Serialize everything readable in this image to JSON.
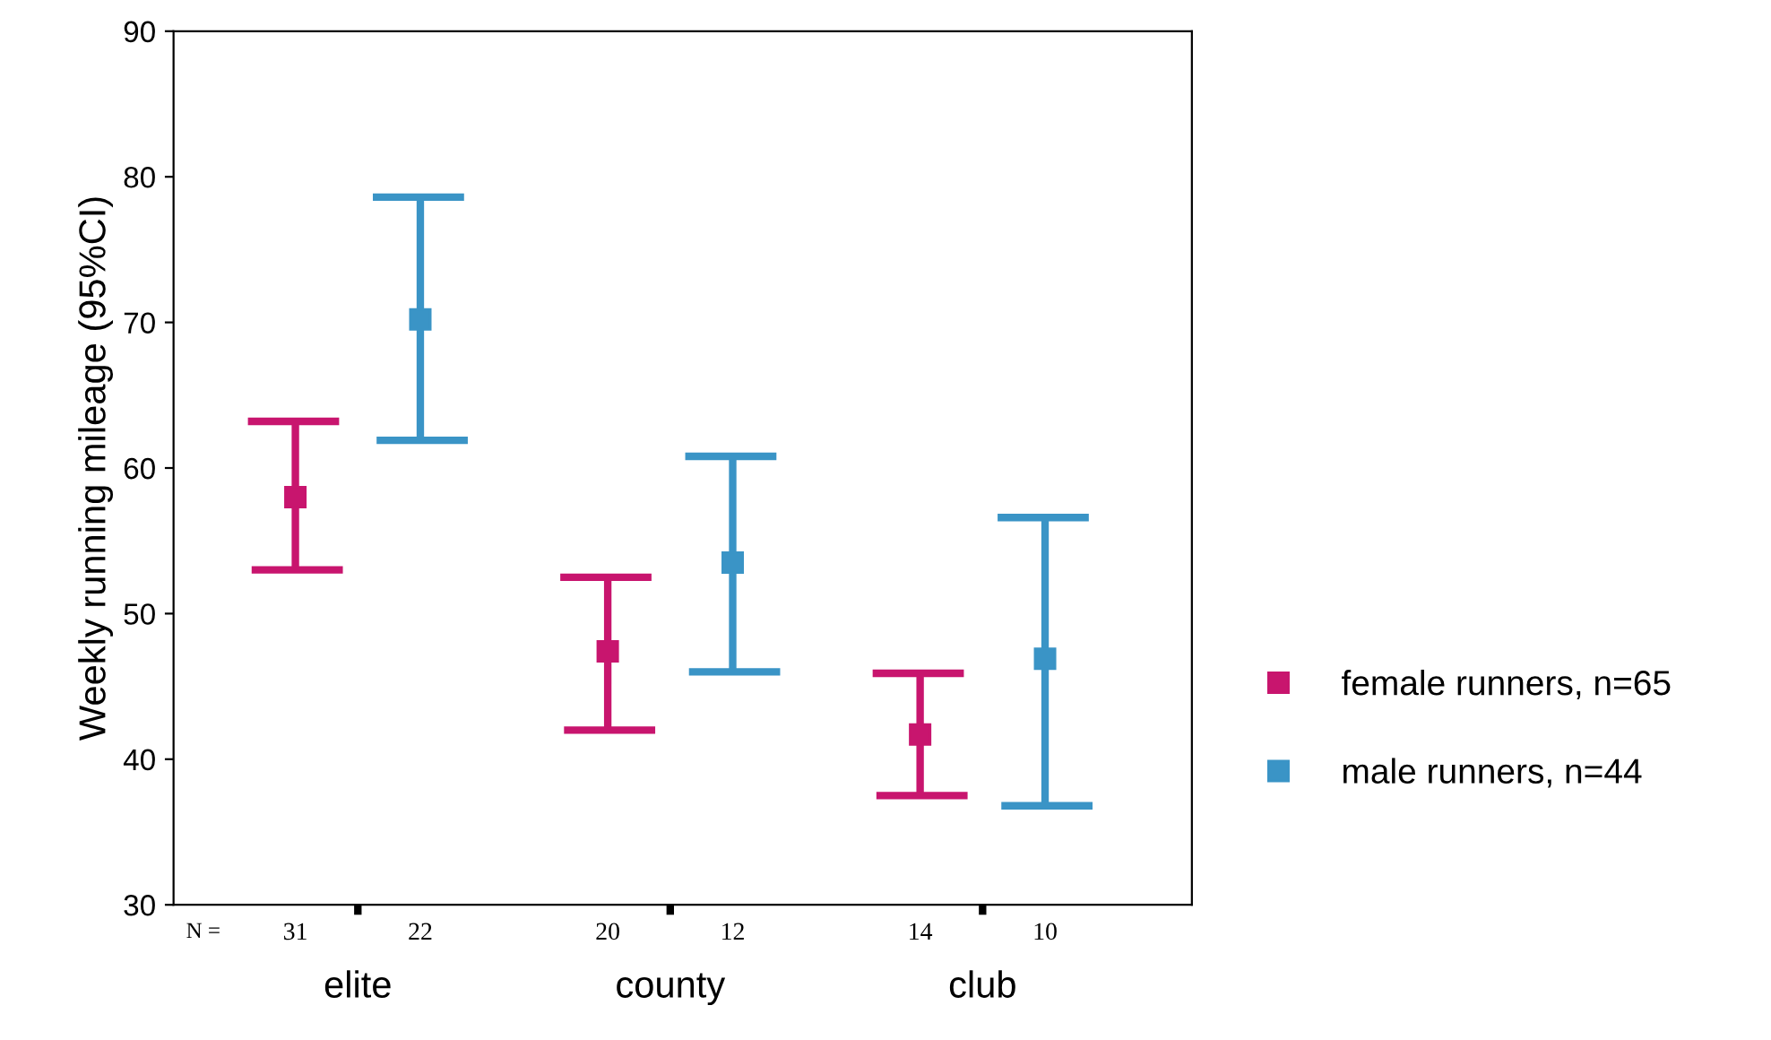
{
  "chart_data": {
    "type": "scatter",
    "ylabel": "Weekly running mileage (95%CI)",
    "categories": [
      "elite",
      "county",
      "club"
    ],
    "ylim": [
      30,
      90
    ],
    "yticks": [
      30,
      40,
      50,
      60,
      70,
      80,
      90
    ],
    "grid": false,
    "legend": "right",
    "marker": "square",
    "series": [
      {
        "name": "female runners, n=65",
        "color": "#c8156e",
        "values": [
          58.0,
          47.4,
          41.7
        ],
        "errors": [
          [
            53.0,
            63.2
          ],
          [
            42.0,
            52.5
          ],
          [
            37.5,
            45.9
          ]
        ]
      },
      {
        "name": "male runners, n=44",
        "color": "#3a94c6",
        "values": [
          70.2,
          53.5,
          46.9
        ],
        "errors": [
          [
            61.9,
            78.6
          ],
          [
            46.0,
            60.8
          ],
          [
            36.8,
            56.6
          ]
        ]
      }
    ],
    "annotations": [
      "N =",
      "31",
      "22",
      "20",
      "12",
      "14",
      "10"
    ]
  }
}
